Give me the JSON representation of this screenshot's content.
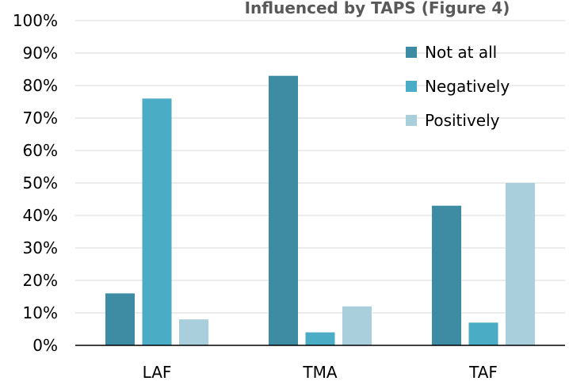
{
  "chart_data": {
    "type": "bar",
    "title": "Influenced by TAPS (Figure 4)",
    "categories": [
      "LAF",
      "TMA",
      "TAF"
    ],
    "series": [
      {
        "name": "Not at all",
        "color": "#3e8ca3",
        "values": [
          0.16,
          0.83,
          0.43
        ]
      },
      {
        "name": "Negatively",
        "color": "#4bacc6",
        "values": [
          0.76,
          0.04,
          0.07
        ]
      },
      {
        "name": "Positively",
        "color": "#a9cfdd",
        "values": [
          0.08,
          0.12,
          0.5
        ]
      }
    ],
    "y_ticks": [
      "0%",
      "10%",
      "20%",
      "30%",
      "40%",
      "50%",
      "60%",
      "70%",
      "80%",
      "90%",
      "100%"
    ],
    "ylim": [
      0,
      1
    ],
    "xlabel": "",
    "ylabel": "",
    "grid": true,
    "legend_position": "top-right"
  }
}
